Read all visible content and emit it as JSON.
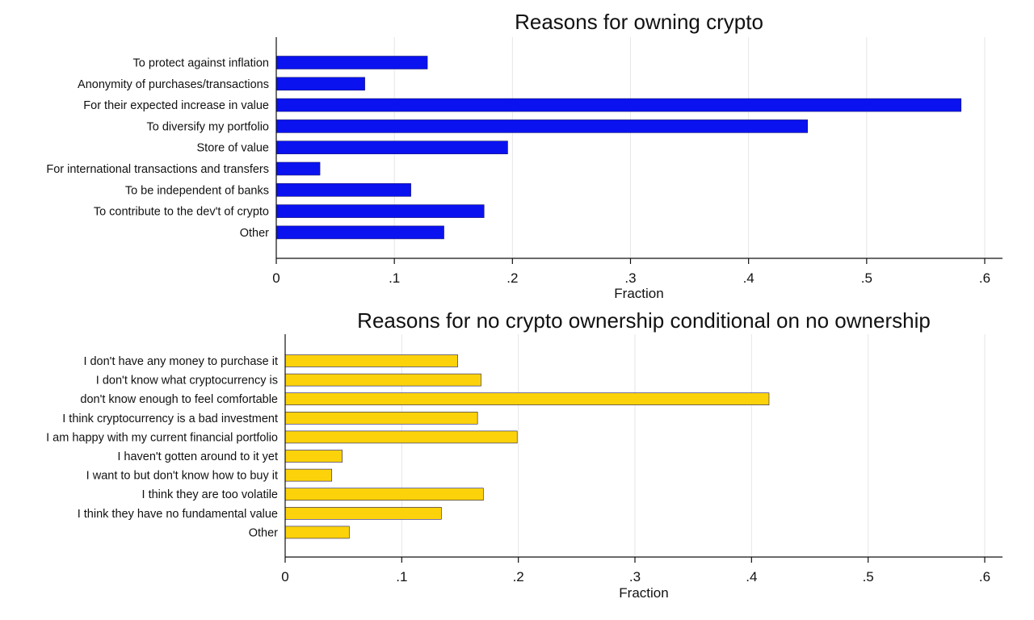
{
  "chart_data": [
    {
      "type": "bar",
      "orientation": "horizontal",
      "title": "Reasons for owning crypto",
      "xlabel": "Fraction",
      "xlim": [
        0,
        0.6
      ],
      "xticks": [
        0,
        0.1,
        0.2,
        0.3,
        0.4,
        0.5,
        0.6
      ],
      "xtick_labels": [
        "0",
        ".1",
        ".2",
        ".3",
        ".4",
        ".5",
        ".6"
      ],
      "grid": true,
      "color": "#0a12f0",
      "categories": [
        "To protect against inflation",
        "Anonymity of purchases/transactions",
        "For their expected increase in value",
        "To diversify my portfolio",
        "Store of value",
        "For international transactions and transfers",
        "To be independent of banks",
        "To contribute to the dev't of crypto",
        "Other"
      ],
      "values": [
        0.128,
        0.075,
        0.58,
        0.45,
        0.196,
        0.037,
        0.114,
        0.176,
        0.142
      ]
    },
    {
      "type": "bar",
      "orientation": "horizontal",
      "title": "Reasons for no crypto ownership conditional on no ownership",
      "xlabel": "Fraction",
      "xlim": [
        0,
        0.6
      ],
      "xticks": [
        0,
        0.1,
        0.2,
        0.3,
        0.4,
        0.5,
        0.6
      ],
      "xtick_labels": [
        "0",
        ".1",
        ".2",
        ".3",
        ".4",
        ".5",
        ".6"
      ],
      "grid": true,
      "color": "#fcd20a",
      "categories": [
        "I don't have any money to purchase it",
        "I don't know what cryptocurrency is",
        "don't know enough to feel comfortable",
        "I think cryptocurrency is a bad investment",
        "I am happy with my current financial portfolio",
        "I haven't gotten around to it yet",
        "I want to but don't know how to buy it",
        "I think they are too volatile",
        "I think they have no fundamental value",
        "Other"
      ],
      "values": [
        0.148,
        0.168,
        0.415,
        0.165,
        0.199,
        0.049,
        0.04,
        0.17,
        0.134,
        0.055
      ]
    }
  ]
}
